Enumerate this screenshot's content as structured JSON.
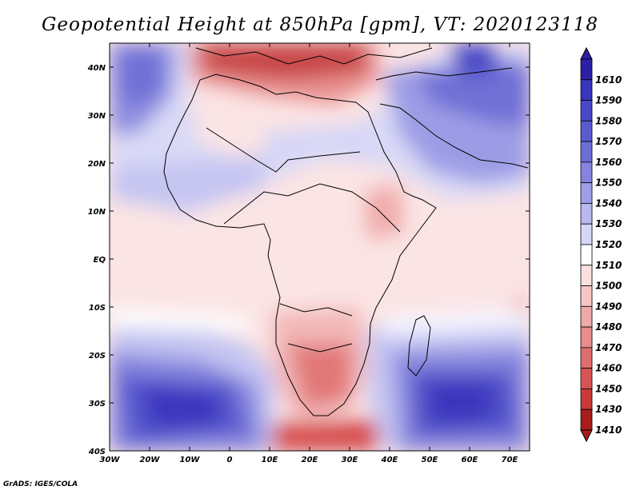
{
  "title": "Geopotential Height at 850hPa [gpm], VT: 2020123118",
  "footer": "GrADS: IGES/COLA",
  "map": {
    "variable": "Geopotential Height",
    "level": "850hPa",
    "units": "gpm",
    "valid_time": "2020123118",
    "lon_range": [
      -30,
      75
    ],
    "lat_range": [
      -40,
      45
    ],
    "lat_ticks": [
      {
        "value": 40,
        "label": "40N"
      },
      {
        "value": 30,
        "label": "30N"
      },
      {
        "value": 20,
        "label": "20N"
      },
      {
        "value": 10,
        "label": "10N"
      },
      {
        "value": 0,
        "label": "EQ"
      },
      {
        "value": -10,
        "label": "10S"
      },
      {
        "value": -20,
        "label": "20S"
      },
      {
        "value": -30,
        "label": "30S"
      },
      {
        "value": -40,
        "label": "40S"
      }
    ],
    "lon_ticks": [
      {
        "value": -30,
        "label": "30W"
      },
      {
        "value": -20,
        "label": "20W"
      },
      {
        "value": -10,
        "label": "10W"
      },
      {
        "value": 0,
        "label": "0"
      },
      {
        "value": 10,
        "label": "10E"
      },
      {
        "value": 20,
        "label": "20E"
      },
      {
        "value": 30,
        "label": "30E"
      },
      {
        "value": 40,
        "label": "40E"
      },
      {
        "value": 50,
        "label": "50E"
      },
      {
        "value": 60,
        "label": "60E"
      },
      {
        "value": 70,
        "label": "70E"
      }
    ]
  },
  "colorbar": {
    "levels": [
      {
        "label": "1610",
        "color": "#2b1fa6"
      },
      {
        "label": "1590",
        "color": "#3a35bd"
      },
      {
        "label": "1580",
        "color": "#4a47c8"
      },
      {
        "label": "1570",
        "color": "#5a5ad0"
      },
      {
        "label": "1560",
        "color": "#6d6dd8"
      },
      {
        "label": "1550",
        "color": "#8484e0"
      },
      {
        "label": "1540",
        "color": "#9e9ee8"
      },
      {
        "label": "1530",
        "color": "#b9b9f0"
      },
      {
        "label": "1520",
        "color": "#d6d6f8"
      },
      {
        "label": "1510",
        "color": "#ffffff"
      },
      {
        "label": "1500",
        "color": "#fbe0e0"
      },
      {
        "label": "1490",
        "color": "#f6c6c6"
      },
      {
        "label": "1480",
        "color": "#f0a9a9"
      },
      {
        "label": "1470",
        "color": "#e98c8c"
      },
      {
        "label": "1460",
        "color": "#e06d6d"
      },
      {
        "label": "1450",
        "color": "#d85454"
      },
      {
        "label": "1430",
        "color": "#c83a3a"
      },
      {
        "label": "1410",
        "color": "#a81c1c"
      }
    ]
  }
}
